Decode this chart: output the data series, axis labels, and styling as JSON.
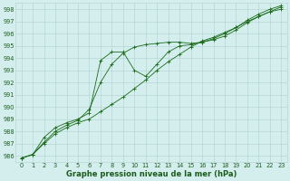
{
  "xlabel": "Graphe pression niveau de la mer (hPa)",
  "x": [
    0,
    1,
    2,
    3,
    4,
    5,
    6,
    7,
    8,
    9,
    10,
    11,
    12,
    13,
    14,
    15,
    16,
    17,
    18,
    19,
    20,
    21,
    22,
    23
  ],
  "series": [
    [
      985.8,
      986.1,
      987.0,
      987.8,
      988.3,
      988.7,
      989.0,
      989.6,
      990.2,
      990.8,
      991.5,
      992.2,
      993.0,
      993.7,
      994.3,
      994.9,
      995.4,
      995.7,
      996.1,
      996.5,
      997.0,
      997.4,
      997.8,
      998.2
    ],
    [
      985.8,
      986.1,
      987.1,
      988.0,
      988.5,
      988.9,
      989.8,
      992.0,
      993.5,
      994.4,
      994.9,
      995.1,
      995.2,
      995.3,
      995.3,
      995.2,
      995.3,
      995.5,
      995.8,
      996.3,
      996.9,
      997.4,
      997.8,
      998.0
    ],
    [
      985.8,
      986.1,
      987.5,
      988.3,
      988.7,
      989.0,
      989.5,
      993.8,
      994.5,
      994.5,
      993.0,
      992.5,
      993.5,
      994.5,
      995.0,
      995.1,
      995.3,
      995.6,
      996.0,
      996.5,
      997.1,
      997.6,
      998.0,
      998.3
    ]
  ],
  "line_color": "#1a6b1a",
  "marker_color": "#1a6b1a",
  "bg_color": "#d4eeee",
  "grid_color": "#b0d0d0",
  "text_color": "#1a5c1a",
  "ylim": [
    985.5,
    998.5
  ],
  "yticks": [
    986,
    987,
    988,
    989,
    990,
    991,
    992,
    993,
    994,
    995,
    996,
    997,
    998
  ],
  "xticks": [
    0,
    1,
    2,
    3,
    4,
    5,
    6,
    7,
    8,
    9,
    10,
    11,
    12,
    13,
    14,
    15,
    16,
    17,
    18,
    19,
    20,
    21,
    22,
    23
  ],
  "tick_fontsize": 4.8,
  "label_fontsize": 6.0
}
